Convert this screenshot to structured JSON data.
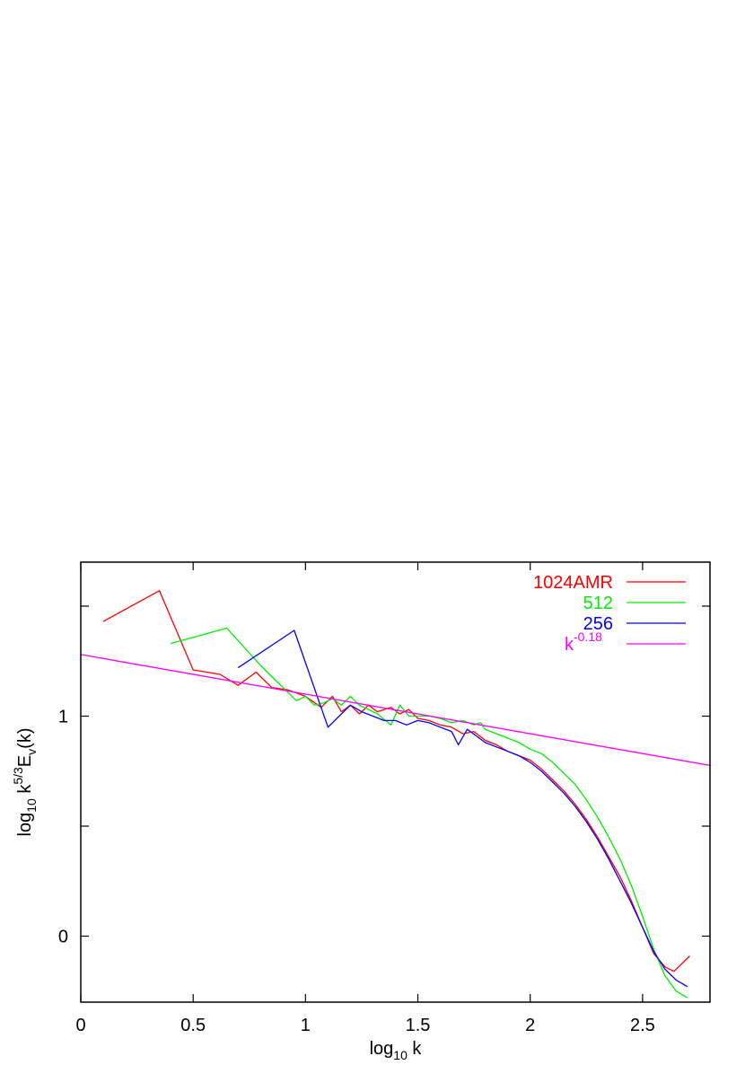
{
  "chart_data": {
    "type": "line",
    "xlabel": {
      "base": "log",
      "sub": "10",
      "tail": " k"
    },
    "ylabel": {
      "p1": "log",
      "sub1": "10",
      "p2": " k",
      "sup": "5/3",
      "p3": "E",
      "sub2": "v",
      "p4": "(k)"
    },
    "xlim": [
      0,
      2.8
    ],
    "ylim": [
      -0.3,
      1.7
    ],
    "xticks": [
      0,
      0.5,
      1,
      1.5,
      2,
      2.5
    ],
    "xtick_labels": [
      "0",
      "0.5",
      "1",
      "1.5",
      "2",
      "2.5"
    ],
    "yticks": [
      0,
      1
    ],
    "ytick_labels": [
      "0",
      "1"
    ],
    "ytick_marks": [
      0,
      0.5,
      1,
      1.5
    ],
    "legend": "top-right",
    "series": [
      {
        "name": "1024AMR",
        "color": "#ff0000",
        "x": [
          0.1,
          0.35,
          0.5,
          0.62,
          0.7,
          0.78,
          0.85,
          0.92,
          1.0,
          1.07,
          1.12,
          1.16,
          1.2,
          1.24,
          1.28,
          1.32,
          1.38,
          1.42,
          1.46,
          1.5,
          1.55,
          1.6,
          1.65,
          1.7,
          1.75,
          1.8,
          1.85,
          1.9,
          1.95,
          2.0,
          2.05,
          2.1,
          2.15,
          2.2,
          2.25,
          2.3,
          2.35,
          2.4,
          2.45,
          2.5,
          2.55,
          2.6,
          2.64,
          2.67,
          2.7,
          2.71
        ],
        "y": [
          1.43,
          1.57,
          1.21,
          1.19,
          1.14,
          1.2,
          1.13,
          1.12,
          1.09,
          1.04,
          1.09,
          1.02,
          1.05,
          1.01,
          1.05,
          1.02,
          1.04,
          1.01,
          1.03,
          0.99,
          0.98,
          0.96,
          0.95,
          0.92,
          0.93,
          0.89,
          0.87,
          0.84,
          0.82,
          0.8,
          0.76,
          0.71,
          0.66,
          0.6,
          0.53,
          0.45,
          0.36,
          0.27,
          0.16,
          0.04,
          -0.08,
          -0.14,
          -0.16,
          -0.13,
          -0.1,
          -0.09
        ]
      },
      {
        "name": "512",
        "color": "#00ee00",
        "x": [
          0.4,
          0.65,
          0.8,
          0.96,
          1.0,
          1.04,
          1.08,
          1.12,
          1.16,
          1.2,
          1.24,
          1.28,
          1.32,
          1.38,
          1.42,
          1.46,
          1.5,
          1.55,
          1.6,
          1.65,
          1.7,
          1.75,
          1.78,
          1.8,
          1.85,
          1.9,
          1.95,
          2.0,
          2.05,
          2.1,
          2.15,
          2.2,
          2.25,
          2.3,
          2.35,
          2.4,
          2.45,
          2.5,
          2.55,
          2.6,
          2.65,
          2.7
        ],
        "y": [
          1.33,
          1.4,
          1.23,
          1.07,
          1.09,
          1.05,
          1.06,
          1.08,
          1.05,
          1.09,
          1.05,
          1.03,
          1.01,
          0.96,
          1.05,
          1.0,
          1.0,
          1.0,
          0.99,
          0.97,
          0.98,
          0.96,
          0.97,
          0.94,
          0.92,
          0.9,
          0.88,
          0.85,
          0.83,
          0.79,
          0.74,
          0.69,
          0.62,
          0.54,
          0.45,
          0.35,
          0.23,
          0.09,
          -0.06,
          -0.18,
          -0.25,
          -0.28
        ]
      },
      {
        "name": "256",
        "color": "#0000ff",
        "x": [
          0.7,
          0.95,
          1.1,
          1.15,
          1.2,
          1.25,
          1.3,
          1.35,
          1.4,
          1.45,
          1.5,
          1.55,
          1.6,
          1.65,
          1.68,
          1.72,
          1.76,
          1.8,
          1.85,
          1.9,
          1.95,
          2.0,
          2.05,
          2.1,
          2.15,
          2.2,
          2.25,
          2.3,
          2.35,
          2.4,
          2.45,
          2.5,
          2.55,
          2.6,
          2.65,
          2.7
        ],
        "y": [
          1.22,
          1.39,
          0.95,
          1.0,
          1.05,
          1.02,
          1.0,
          0.98,
          0.98,
          0.96,
          0.98,
          0.97,
          0.95,
          0.93,
          0.87,
          0.94,
          0.91,
          0.88,
          0.86,
          0.84,
          0.82,
          0.79,
          0.75,
          0.7,
          0.65,
          0.59,
          0.52,
          0.44,
          0.35,
          0.25,
          0.15,
          0.04,
          -0.07,
          -0.15,
          -0.2,
          -0.23
        ]
      },
      {
        "name": "k",
        "name_sup": "-0.18",
        "color": "#ff00ff",
        "x": [
          0,
          2.8
        ],
        "y": [
          1.28,
          0.776
        ]
      }
    ]
  }
}
